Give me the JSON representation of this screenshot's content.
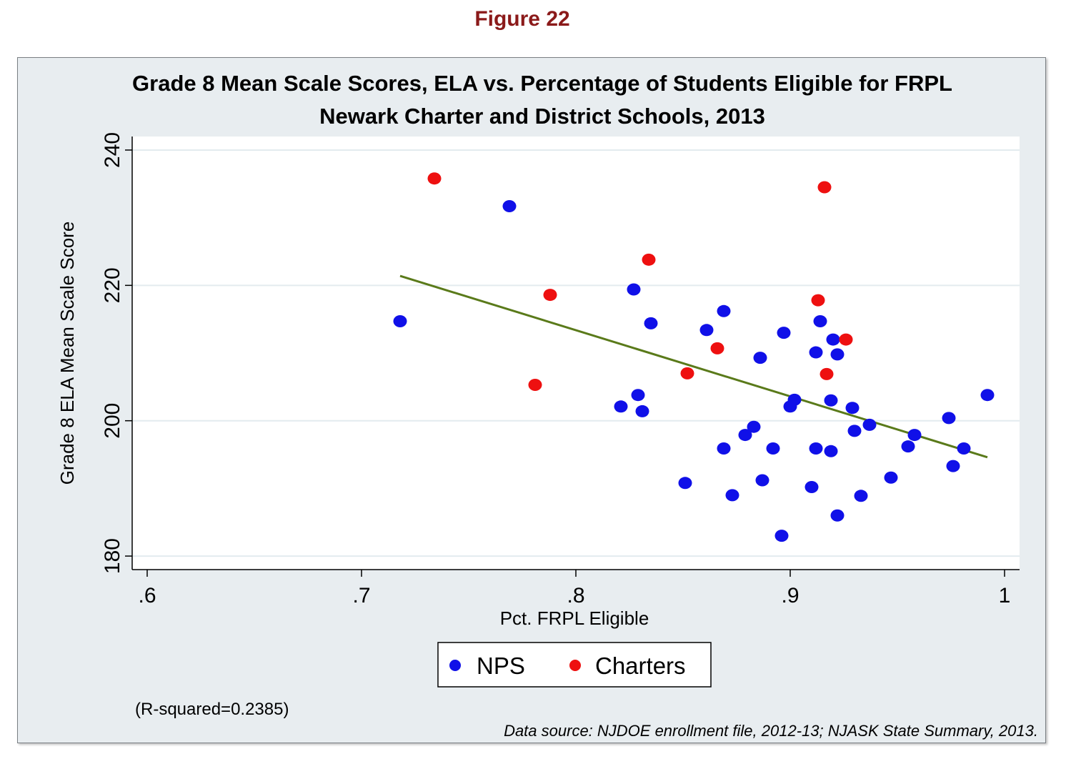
{
  "figure_label": "Figure 22",
  "colors": {
    "nps": "#1010e8",
    "charters": "#ee1010",
    "fit": "#5a7a1a",
    "label": "#8b1a1a"
  },
  "chart_data": {
    "type": "scatter",
    "title": [
      "Grade 8 Mean Scale Scores, ELA vs. Percentage of Students Eligible for FRPL",
      "Newark Charter and District Schools, 2013"
    ],
    "xlabel": "Pct. FRPL Eligible",
    "ylabel": "Grade 8 ELA Mean Scale Score",
    "xlim": [
      0.593,
      1.007
    ],
    "ylim": [
      178,
      242
    ],
    "xticks": [
      0.6,
      0.7,
      0.8,
      0.9,
      1.0
    ],
    "xtick_labels": [
      ".6",
      ".7",
      ".8",
      ".9",
      "1"
    ],
    "yticks": [
      180,
      200,
      220,
      240
    ],
    "ytick_labels": [
      "180",
      "200",
      "220",
      "240"
    ],
    "grid": true,
    "legend": [
      "NPS",
      "Charters"
    ],
    "legend_position": "bottom",
    "fit_line": {
      "x": [
        0.718,
        0.992
      ],
      "y": [
        221.4,
        194.6
      ]
    },
    "series": [
      {
        "name": "NPS",
        "points": [
          [
            0.718,
            214.7
          ],
          [
            0.769,
            231.7
          ],
          [
            0.827,
            219.4
          ],
          [
            0.835,
            214.4
          ],
          [
            0.821,
            202.1
          ],
          [
            0.829,
            203.8
          ],
          [
            0.831,
            201.4
          ],
          [
            0.851,
            190.8
          ],
          [
            0.861,
            213.4
          ],
          [
            0.869,
            216.2
          ],
          [
            0.869,
            195.9
          ],
          [
            0.873,
            189.0
          ],
          [
            0.879,
            197.9
          ],
          [
            0.883,
            199.1
          ],
          [
            0.886,
            209.3
          ],
          [
            0.887,
            191.2
          ],
          [
            0.892,
            195.9
          ],
          [
            0.896,
            183.0
          ],
          [
            0.897,
            213.0
          ],
          [
            0.9,
            202.1
          ],
          [
            0.902,
            203.1
          ],
          [
            0.91,
            190.2
          ],
          [
            0.912,
            210.1
          ],
          [
            0.912,
            195.9
          ],
          [
            0.914,
            214.7
          ],
          [
            0.919,
            203.0
          ],
          [
            0.919,
            195.5
          ],
          [
            0.92,
            212.0
          ],
          [
            0.922,
            209.8
          ],
          [
            0.922,
            186.0
          ],
          [
            0.929,
            201.9
          ],
          [
            0.93,
            198.5
          ],
          [
            0.933,
            188.9
          ],
          [
            0.937,
            199.4
          ],
          [
            0.947,
            191.6
          ],
          [
            0.955,
            196.2
          ],
          [
            0.958,
            197.9
          ],
          [
            0.974,
            200.4
          ],
          [
            0.976,
            193.3
          ],
          [
            0.981,
            195.9
          ],
          [
            0.992,
            203.8
          ]
        ]
      },
      {
        "name": "Charters",
        "points": [
          [
            0.734,
            235.8
          ],
          [
            0.781,
            205.3
          ],
          [
            0.788,
            218.6
          ],
          [
            0.834,
            223.8
          ],
          [
            0.852,
            207.0
          ],
          [
            0.866,
            210.7
          ],
          [
            0.913,
            217.8
          ],
          [
            0.916,
            234.5
          ],
          [
            0.917,
            206.9
          ],
          [
            0.926,
            212.0
          ]
        ]
      }
    ],
    "annotations": [
      "(R-squared=0.2385)",
      "Data source: NJDOE enrollment file, 2012-13; NJASK State Summary, 2013."
    ]
  }
}
